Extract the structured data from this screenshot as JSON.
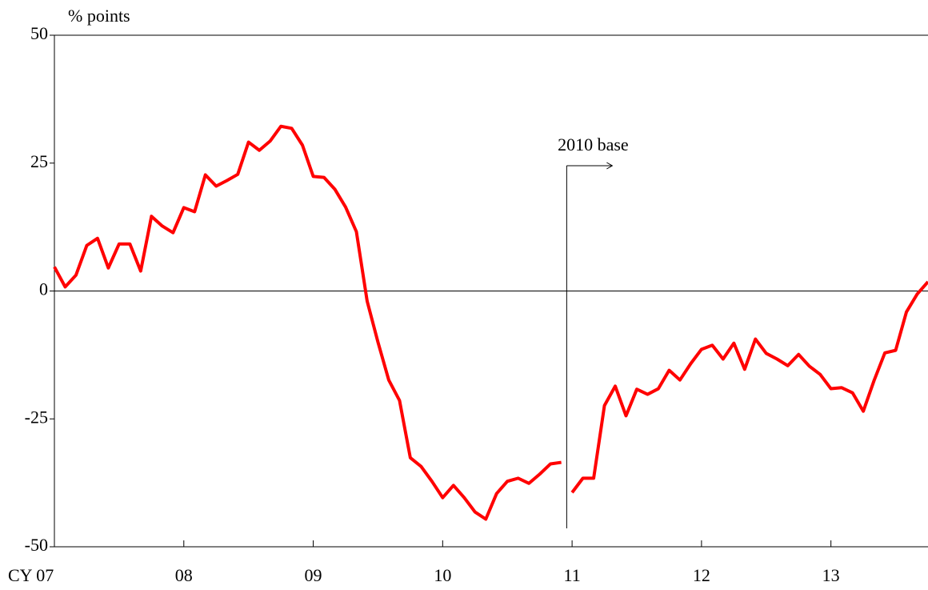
{
  "chart_data": {
    "type": "line",
    "y_axis_label": "% points",
    "annotation": "2010 base",
    "categories": [
      "CY 07",
      null,
      null,
      null,
      null,
      null,
      null,
      null,
      null,
      null,
      null,
      null,
      "08",
      null,
      null,
      null,
      null,
      null,
      null,
      null,
      null,
      null,
      null,
      null,
      "09",
      null,
      null,
      null,
      null,
      null,
      null,
      null,
      null,
      null,
      null,
      null,
      "10",
      null,
      null,
      null,
      null,
      null,
      null,
      null,
      null,
      null,
      null,
      null,
      "11",
      null,
      null,
      null,
      null,
      null,
      null,
      null,
      null,
      null,
      null,
      null,
      "12",
      null,
      null,
      null,
      null,
      null,
      null,
      null,
      null,
      null,
      null,
      null,
      "13",
      null,
      null,
      null,
      null,
      null,
      null,
      null,
      null,
      null
    ],
    "series": [
      {
        "color": "#ff0000",
        "values": [
          4.7,
          0.8,
          3.1,
          8.9,
          10.3,
          4.5,
          9.2,
          9.2,
          3.9,
          14.6,
          12.7,
          11.4,
          16.3,
          15.5,
          22.7,
          20.5,
          21.6,
          22.8,
          29.1,
          27.5,
          29.3,
          32.2,
          31.8,
          28.5,
          22.4,
          22.2,
          19.9,
          16.4,
          11.6,
          -2.0,
          -10.0,
          -17.4,
          -21.4,
          -32.6,
          -34.3,
          -37.2,
          -40.4,
          -38.0,
          -40.4,
          -43.2,
          -44.6,
          -39.6,
          -37.2,
          -36.6,
          -37.6,
          -35.8,
          -33.8,
          -33.5,
          null,
          null,
          null,
          null,
          null,
          null,
          null,
          null,
          null,
          null,
          null,
          null,
          null,
          null,
          null,
          null,
          null,
          null,
          null,
          null,
          null,
          null,
          null,
          null,
          null,
          null,
          null,
          null,
          null,
          null,
          null,
          null,
          null,
          null
        ]
      },
      {
        "color": "#ff0000",
        "values": [
          null,
          null,
          null,
          null,
          null,
          null,
          null,
          null,
          null,
          null,
          null,
          null,
          null,
          null,
          null,
          null,
          null,
          null,
          null,
          null,
          null,
          null,
          null,
          null,
          null,
          null,
          null,
          null,
          null,
          null,
          null,
          null,
          null,
          null,
          null,
          null,
          null,
          null,
          null,
          null,
          null,
          null,
          null,
          null,
          null,
          null,
          null,
          null,
          -39.4,
          -36.6,
          -36.6,
          -22.4,
          -18.6,
          -24.4,
          -19.2,
          -20.2,
          -19.1,
          -15.5,
          -17.4,
          -14.2,
          -11.4,
          -10.6,
          -13.3,
          -10.2,
          -15.3,
          -9.4,
          -12.2,
          -13.3,
          -14.6,
          -12.4,
          -14.7,
          -16.3,
          -19.1,
          -18.9,
          -19.9,
          -23.5,
          -17.5,
          -12.1,
          -11.6,
          -4.1,
          -0.6,
          1.8
        ]
      }
    ],
    "ylim": [
      -50,
      50
    ],
    "yticks": [
      -50,
      -25,
      0,
      25,
      50
    ]
  }
}
